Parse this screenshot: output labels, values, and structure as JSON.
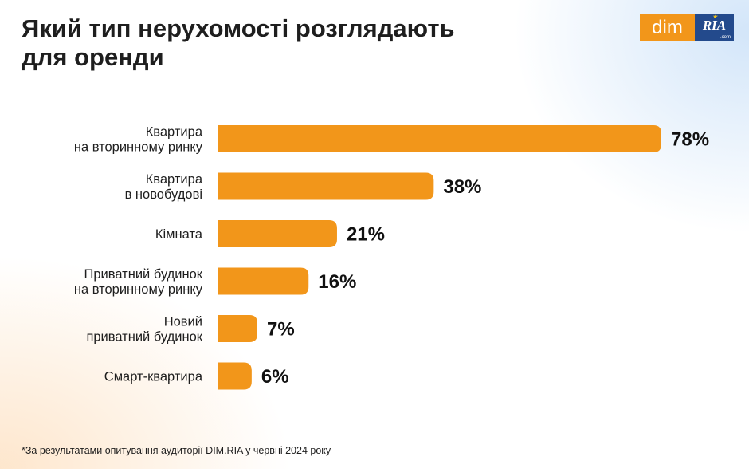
{
  "title_lines": [
    "Який тип нерухомості розглядають",
    "для оренди"
  ],
  "logo": {
    "dim": "dim",
    "ria": "RIA",
    "ria_suffix": ".com"
  },
  "footnote": "*За результатами опитування аудиторії DIM.RIA у червні 2024 року",
  "colors": {
    "bar": "#f2961a",
    "logo_ria_bg": "#234a8c"
  },
  "chart_data": {
    "type": "bar",
    "orientation": "horizontal",
    "title": "Який тип нерухомості розглядають для оренди",
    "categories": [
      [
        "Квартира",
        "на вторинному ринку"
      ],
      [
        "Квартира",
        "в новобудові"
      ],
      [
        "Кімната"
      ],
      [
        "Приватний будинок",
        "на вторинному ринку"
      ],
      [
        "Новий",
        "приватний будинок"
      ],
      [
        "Смарт-квартира"
      ]
    ],
    "values": [
      78,
      38,
      21,
      16,
      7,
      6
    ],
    "value_labels": [
      "78%",
      "38%",
      "21%",
      "16%",
      "7%",
      "6%"
    ],
    "unit": "%",
    "xlim": [
      0,
      78
    ],
    "grid": false,
    "legend": "none"
  }
}
